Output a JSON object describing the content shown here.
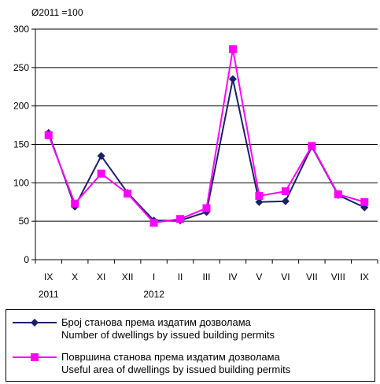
{
  "chart_data": {
    "type": "line",
    "unit_note": "Ø2011 =100",
    "x": [
      "IX",
      "X",
      "XI",
      "XII",
      "I",
      "II",
      "III",
      "IV",
      "V",
      "VI",
      "VII",
      "VIII",
      "IX"
    ],
    "year_labels": [
      {
        "text": "2011",
        "category_index": 0
      },
      {
        "text": "2012",
        "category_index": 4
      }
    ],
    "ylim": [
      0,
      300
    ],
    "yticks": [
      0,
      50,
      100,
      150,
      200,
      250,
      300
    ],
    "grid": true,
    "legend_placement": "bottom",
    "series": [
      {
        "name": "Број станова према издатим дозволама",
        "name_en": "Number of dwellings by issued building permits",
        "color": "#1a1f6e",
        "marker": "diamond",
        "values": [
          165,
          69,
          135,
          87,
          51,
          51,
          62,
          235,
          75,
          76,
          147,
          84,
          68
        ]
      },
      {
        "name": "Површина станова према издатим дозволама",
        "name_en": "Useful area of dwellings by issued building permits",
        "color": "#ff00ff",
        "marker": "square",
        "values": [
          162,
          73,
          112,
          86,
          48,
          53,
          67,
          274,
          83,
          89,
          148,
          85,
          75
        ]
      }
    ]
  }
}
